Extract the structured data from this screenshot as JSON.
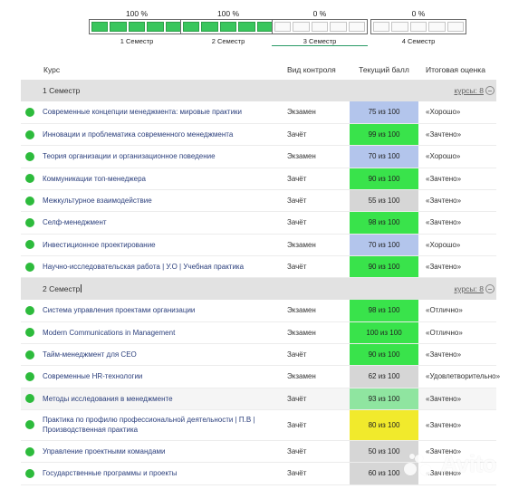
{
  "semesters": [
    {
      "percent": "100 %",
      "label": "1 Семестр",
      "filled": 5,
      "active": false
    },
    {
      "percent": "100 %",
      "label": "2 Семестр",
      "filled": 5,
      "active": false
    },
    {
      "percent": "0 %",
      "label": "3 Семестр",
      "filled": 0,
      "active": true
    },
    {
      "percent": "0 %",
      "label": "4 Семестр",
      "filled": 0,
      "active": false
    }
  ],
  "table": {
    "headers": {
      "course": "Курс",
      "control": "Вид контроля",
      "score": "Текущий балл",
      "grade": "Итоговая оценка"
    }
  },
  "groups": [
    {
      "label": "1   Семестр",
      "count_label": "курсы: 8",
      "rows": [
        {
          "course": "Современные концепции менеджмента: мировые практики",
          "control": "Экзамен",
          "score": "75 из 100",
          "score_color": "#b3c5ec",
          "grade": "«Хорошо»"
        },
        {
          "course": "Инновации и проблематика современного менеджмента",
          "control": "Зачёт",
          "score": "99 из 100",
          "score_color": "#39e34b",
          "grade": "«Зачтено»"
        },
        {
          "course": "Теория организации и организационное поведение",
          "control": "Экзамен",
          "score": "70 из 100",
          "score_color": "#b3c5ec",
          "grade": "«Хорошо»"
        },
        {
          "course": "Коммуникации топ-менеджера",
          "control": "Зачёт",
          "score": "90 из 100",
          "score_color": "#39e34b",
          "grade": "«Зачтено»"
        },
        {
          "course": "Межкультурное взаимодействие",
          "control": "Зачёт",
          "score": "55 из 100",
          "score_color": "#d6d6d6",
          "grade": "«Зачтено»"
        },
        {
          "course": "Селф-менеджмент",
          "control": "Зачёт",
          "score": "98 из 100",
          "score_color": "#39e34b",
          "grade": "«Зачтено»"
        },
        {
          "course": "Инвестиционное проектирование",
          "control": "Экзамен",
          "score": "70 из 100",
          "score_color": "#b3c5ec",
          "grade": "«Хорошо»"
        },
        {
          "course": "Научно-исследовательская работа | У.О | Учебная практика",
          "control": "Зачёт",
          "score": "90 из 100",
          "score_color": "#39e34b",
          "grade": "«Зачтено»"
        }
      ]
    },
    {
      "label": "2   Семестр",
      "count_label": "курсы: 8",
      "rows": [
        {
          "course": "Система управления проектами организации",
          "control": "Экзамен",
          "score": "98 из 100",
          "score_color": "#39e34b",
          "grade": "«Отлично»"
        },
        {
          "course": "Modern Communications in Management",
          "control": "Экзамен",
          "score": "100 из 100",
          "score_color": "#39e34b",
          "grade": "«Отлично»"
        },
        {
          "course": "Тайм-менеджмент для CEO",
          "control": "Зачёт",
          "score": "90 из 100",
          "score_color": "#39e34b",
          "grade": "«Зачтено»"
        },
        {
          "course": "Современные HR-технологии",
          "control": "Экзамен",
          "score": "62 из 100",
          "score_color": "#d6d6d6",
          "grade": "«Удовлетворительно»"
        },
        {
          "course": "Методы исследования в менеджменте",
          "control": "Зачёт",
          "score": "93 из 100",
          "score_color": "#8fe5a0",
          "grade": "«Зачтено»"
        },
        {
          "course": "Практика по профилю профессиональной деятельности | П.В | Производственная практика",
          "control": "Зачёт",
          "score": "80 из 100",
          "score_color": "#f1ea2c",
          "grade": "«Зачтено»"
        },
        {
          "course": "Управление проектными командами",
          "control": "Зачёт",
          "score": "50 из 100",
          "score_color": "#d6d6d6",
          "grade": "«Зачтено»"
        },
        {
          "course": "Государственные программы и проекты",
          "control": "Зачёт",
          "score": "60 из 100",
          "score_color": "#d6d6d6",
          "grade": "«Зачтено»"
        }
      ]
    }
  ],
  "watermark": {
    "text": "Avito"
  }
}
